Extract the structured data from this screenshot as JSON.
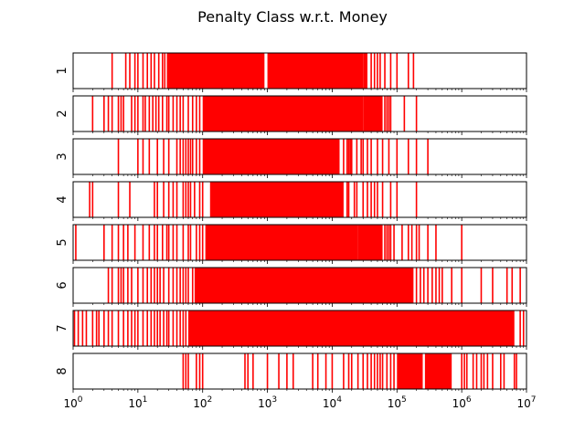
{
  "chart_data": {
    "type": "barcode",
    "title": "Penalty Class w.r.t. Money",
    "x_scale": "log",
    "xlim": [
      1,
      10000000
    ],
    "x_ticks": [
      {
        "base": "10",
        "exp": "0"
      },
      {
        "base": "10",
        "exp": "1"
      },
      {
        "base": "10",
        "exp": "2"
      },
      {
        "base": "10",
        "exp": "3"
      },
      {
        "base": "10",
        "exp": "4"
      },
      {
        "base": "10",
        "exp": "5"
      },
      {
        "base": "10",
        "exp": "6"
      },
      {
        "base": "10",
        "exp": "7"
      }
    ],
    "line_color": "#ff0000",
    "panels": [
      {
        "label": "1",
        "values": [
          4,
          6.5,
          7.5,
          9,
          10,
          12,
          14,
          16,
          18,
          21,
          24,
          26
        ],
        "fills": [
          [
            28,
            900
          ],
          [
            1000,
            30000
          ],
          [
            30000,
            35000
          ]
        ],
        "extra_values": [
          40000,
          45000,
          50000,
          55000,
          65000,
          80000,
          100000,
          150000,
          180000
        ]
      },
      {
        "label": "2",
        "values": [
          2,
          3,
          3.5,
          4,
          5,
          5.5,
          6,
          8,
          9,
          10,
          12,
          13,
          15,
          17,
          19,
          21,
          24,
          28,
          30,
          35,
          40,
          45,
          50,
          60,
          70,
          80,
          90
        ],
        "fills": [
          [
            100,
            30000
          ],
          [
            30000,
            60000
          ]
        ],
        "extra_values": [
          65000,
          70000,
          75000,
          80000,
          130000,
          200000
        ]
      },
      {
        "label": "3",
        "values": [
          5,
          10,
          12,
          15,
          20,
          25,
          30,
          40,
          45,
          50,
          55,
          60,
          65,
          70,
          80,
          90
        ],
        "fills": [
          [
            100,
            13000
          ]
        ],
        "extra_values": [
          15000,
          17000,
          18000,
          19000,
          20000,
          24000,
          28000,
          30000,
          35000,
          40000,
          50000,
          60000,
          75000,
          100000,
          150000,
          200000,
          300000
        ]
      },
      {
        "label": "4",
        "values": [
          1.8,
          2,
          5,
          7.5,
          18,
          20,
          25,
          30,
          35,
          40,
          50,
          55,
          60,
          65,
          75,
          90,
          100
        ],
        "fills": [
          [
            130,
            15000
          ]
        ],
        "extra_values": [
          17000,
          18000,
          22000,
          24000,
          30000,
          35000,
          40000,
          45000,
          50000,
          60000,
          80000,
          100000,
          200000
        ]
      },
      {
        "label": "5",
        "values": [
          1.1,
          3,
          4,
          5,
          6,
          7,
          9,
          12,
          15,
          18,
          20,
          24,
          28,
          30,
          35,
          40,
          50,
          60,
          65,
          80,
          90,
          100
        ],
        "fills": [
          [
            110,
            25000
          ],
          [
            25000,
            60000
          ]
        ],
        "extra_values": [
          65000,
          70000,
          75000,
          80000,
          90000,
          120000,
          150000,
          170000,
          200000,
          220000,
          300000,
          400000,
          1000000
        ]
      },
      {
        "label": "6",
        "values": [
          3.5,
          4,
          5,
          5.5,
          6,
          7,
          8,
          10,
          12,
          14,
          16,
          18,
          20,
          22,
          25,
          30,
          35,
          40,
          45,
          50,
          55,
          60,
          70
        ],
        "fills": [
          [
            75,
            180000
          ]
        ],
        "extra_values": [
          200000,
          230000,
          260000,
          300000,
          350000,
          400000,
          450000,
          500000,
          700000,
          1000000,
          2000000,
          3000000,
          5000000,
          6000000,
          8000000
        ]
      },
      {
        "label": "7",
        "values": [
          1.05,
          1.2,
          1.4,
          1.6,
          2,
          2.3,
          2.5,
          3,
          3.5,
          4,
          5,
          6,
          7,
          8,
          9,
          10,
          12,
          14,
          16,
          18,
          20,
          22,
          25,
          28,
          30,
          35,
          40,
          45,
          50,
          55
        ],
        "fills": [
          [
            60,
            6500000
          ]
        ],
        "extra_values": [
          8000000,
          9000000
        ]
      },
      {
        "label": "8",
        "values": [
          50,
          55,
          60,
          80,
          90,
          100,
          450,
          500,
          600,
          1000,
          1500,
          2000,
          2500,
          5000,
          6000,
          8000,
          10000
        ],
        "fills": [
          [
            100000,
            250000
          ],
          [
            270000,
            700000
          ]
        ],
        "extra_values": [
          15000,
          18000,
          20000,
          25000,
          30000,
          35000,
          40000,
          45000,
          50000,
          55000,
          60000,
          70000,
          80000,
          90000,
          1000000,
          1100000,
          1200000,
          1500000,
          1700000,
          2000000,
          2200000,
          2500000,
          3000000,
          4000000,
          4500000,
          6500000,
          7000000
        ]
      }
    ]
  }
}
